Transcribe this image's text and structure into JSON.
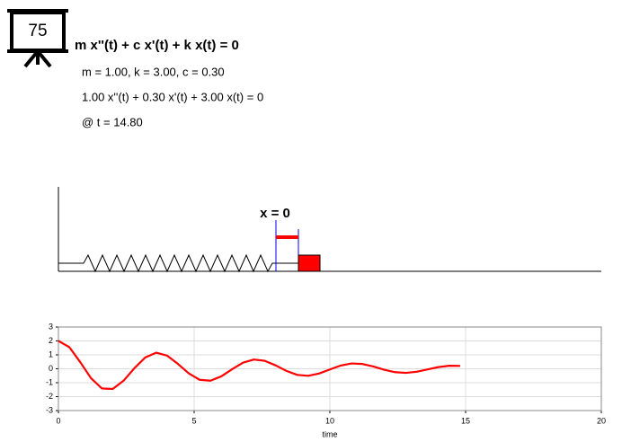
{
  "icon_label": "75",
  "equation": "m x''(t) + c x'(t) + k x(t) = 0",
  "parameters": "m = 1.00, k = 3.00, c = 0.30",
  "numeric_equation": "1.00 x''(t) + 0.30 x'(t) + 3.00 x(t) = 0",
  "time_label": "@ t = 14.80",
  "zero_label": "x = 0",
  "chart_data": {
    "type": "line",
    "xlabel": "time",
    "color": "#ff0000",
    "grid": true,
    "x": [
      0,
      0.4,
      0.8,
      1.2,
      1.6,
      2.0,
      2.4,
      2.8,
      3.2,
      3.6,
      4.0,
      4.4,
      4.8,
      5.2,
      5.6,
      6.0,
      6.4,
      6.8,
      7.2,
      7.6,
      8.0,
      8.4,
      8.8,
      9.2,
      9.6,
      10.0,
      10.4,
      10.8,
      11.2,
      11.6,
      12.0,
      12.4,
      12.8,
      13.2,
      13.6,
      14.0,
      14.4,
      14.8
    ],
    "values": [
      2.0,
      1.556,
      0.488,
      -0.673,
      -1.411,
      -1.451,
      -0.859,
      0.043,
      0.815,
      1.154,
      0.95,
      0.353,
      -0.328,
      -0.79,
      -0.857,
      -0.545,
      -0.03,
      0.438,
      0.664,
      0.574,
      0.246,
      -0.153,
      -0.44,
      -0.504,
      -0.341,
      -0.049,
      0.232,
      0.382,
      0.346,
      0.166,
      -0.066,
      -0.243,
      -0.294,
      -0.212,
      -0.047,
      0.121,
      0.216,
      0.207
    ],
    "xlim": [
      0,
      20
    ],
    "ylim": [
      -3,
      3
    ],
    "xticks": [
      0,
      5,
      10,
      15,
      20
    ],
    "yticks": [
      -3,
      -2,
      -1,
      0,
      1,
      2,
      3
    ]
  }
}
